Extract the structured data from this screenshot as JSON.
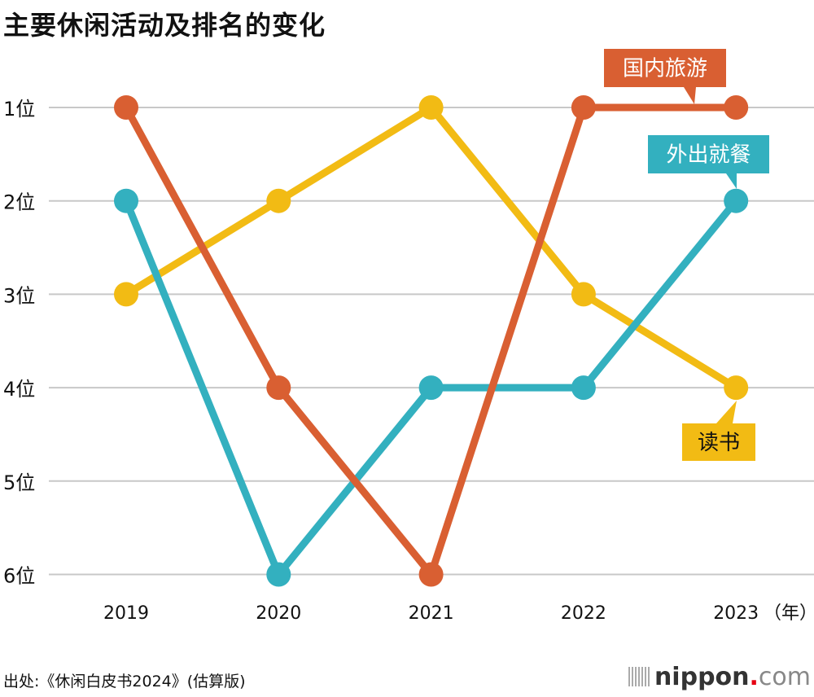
{
  "title": "主要休闲活动及排名的变化",
  "source": "出处:《休闲白皮书2024》(估算版)",
  "logo": {
    "name": "nippon",
    "dot": ".",
    "suffix": "com"
  },
  "chart_data": {
    "type": "line",
    "title": "主要休闲活动及排名的变化",
    "x": [
      "2019",
      "2020",
      "2021",
      "2022",
      "2023"
    ],
    "x_unit": "（年）",
    "y_ticks": [
      "1位",
      "2位",
      "3位",
      "4位",
      "5位",
      "6位"
    ],
    "ylim": [
      1,
      6
    ],
    "y_inverted": true,
    "grid": true,
    "series": [
      {
        "name": "读书",
        "color": "#f2bb14",
        "label_text_color": "#111111",
        "values": [
          3,
          2,
          1,
          3,
          4
        ]
      },
      {
        "name": "外出就餐",
        "color": "#33b0bf",
        "label_text_color": "#ffffff",
        "values": [
          2,
          6,
          4,
          4,
          2
        ]
      },
      {
        "name": "国内旅游",
        "color": "#d95f32",
        "label_text_color": "#ffffff",
        "values": [
          1,
          4,
          6,
          1,
          1
        ]
      }
    ]
  }
}
